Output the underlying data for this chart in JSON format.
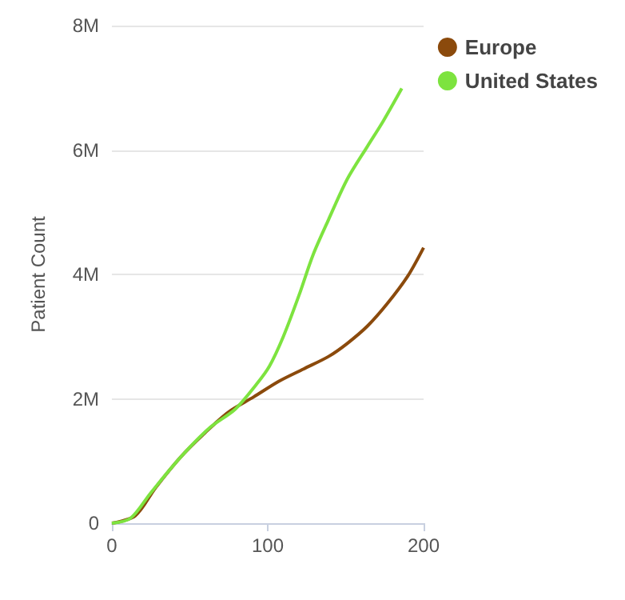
{
  "chart_data": {
    "type": "line",
    "ylabel": "Patient Count",
    "xlim": [
      0,
      200
    ],
    "xticks": [
      0,
      100,
      200
    ],
    "ylim": [
      0,
      8000000
    ],
    "yticks": [
      0,
      {
        "value": 2000000,
        "label": "2M"
      },
      {
        "value": 4000000,
        "label": "4M"
      },
      {
        "value": 6000000,
        "label": "6M"
      },
      {
        "value": 8000000,
        "label": "8M"
      }
    ],
    "grid": "y",
    "legend": "top right",
    "marker": "none",
    "line_style": "solid",
    "series": [
      {
        "name": "Europe",
        "color": "#8b4a0c",
        "x": [
          0,
          15,
          28,
          44,
          60,
          75,
          91,
          107,
          123,
          139,
          151,
          164,
          177,
          190,
          200
        ],
        "values": [
          0,
          120000,
          570000,
          1060000,
          1460000,
          1790000,
          2030000,
          2280000,
          2480000,
          2680000,
          2890000,
          3170000,
          3540000,
          3980000,
          4430000
        ]
      },
      {
        "name": "United States",
        "color": "#7de33f",
        "x": [
          0,
          12,
          25,
          44,
          63,
          79,
          93,
          101,
          110,
          120,
          129,
          139,
          151,
          164,
          174,
          186
        ],
        "values": [
          0,
          80000,
          490000,
          1060000,
          1540000,
          1830000,
          2240000,
          2520000,
          3000000,
          3660000,
          4310000,
          4880000,
          5530000,
          6060000,
          6460000,
          6990000
        ]
      }
    ]
  }
}
